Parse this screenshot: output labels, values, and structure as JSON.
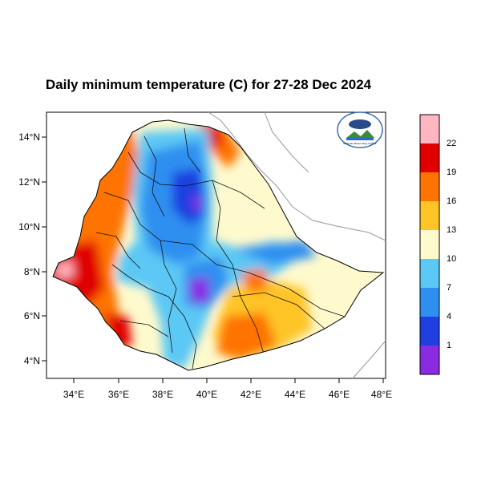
{
  "title": "Daily minimum temperature (C) for 27-28 Dec 2024",
  "map": {
    "lon_range": [
      33,
      48
    ],
    "lat_range": [
      3.2,
      15
    ],
    "lon_ticks": [
      "34°E",
      "36°E",
      "38°E",
      "40°E",
      "42°E",
      "44°E",
      "46°E",
      "48°E"
    ],
    "lat_ticks": [
      "4°N",
      "6°N",
      "8°N",
      "10°N",
      "12°N",
      "14°N"
    ]
  },
  "colorbar": {
    "labels": [
      "1",
      "4",
      "7",
      "10",
      "13",
      "16",
      "19",
      "22"
    ],
    "colors": [
      "#8a2be2",
      "#1f3fe0",
      "#2e8ff0",
      "#5bc8f5",
      "#fffacd",
      "#ffc425",
      "#ff7300",
      "#e00000",
      "#ffb6c1"
    ]
  },
  "logo": {
    "name": "Ethiopian Meteorology Institute logo",
    "text": "Ethiopian Meteorology Institute"
  }
}
